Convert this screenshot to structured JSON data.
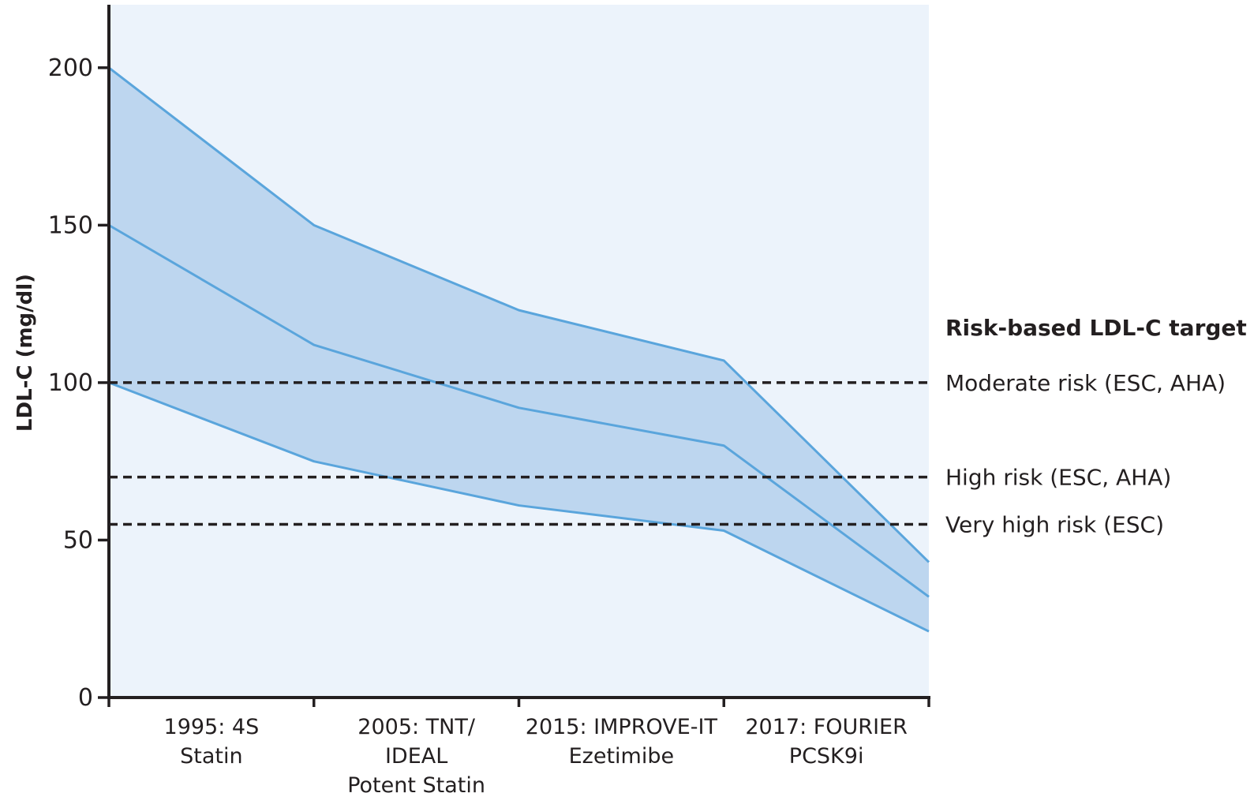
{
  "chart_data": {
    "type": "area",
    "title": "",
    "ylabel": "LDL-C (mg/dl)",
    "xlabel": "",
    "ylim": [
      0,
      220
    ],
    "yticks": [
      0,
      50,
      100,
      150,
      200
    ],
    "grid": false,
    "categories": [
      {
        "lines": [
          "1995: 4S",
          "Statin"
        ]
      },
      {
        "lines": [
          "2005: TNT/",
          "IDEAL",
          "Potent Statin"
        ]
      },
      {
        "lines": [
          "2015: IMPROVE-IT",
          "Ezetimibe"
        ]
      },
      {
        "lines": [
          "2017: FOURIER",
          "PCSK9i"
        ]
      }
    ],
    "x": [
      0,
      1,
      2,
      3,
      4
    ],
    "series": [
      {
        "values": [
          200,
          150,
          123,
          107,
          43
        ]
      },
      {
        "values": [
          150,
          112,
          92,
          80,
          32
        ]
      },
      {
        "values": [
          100,
          75,
          61,
          53,
          21
        ]
      }
    ],
    "band": {
      "upper_series": 0,
      "lower_series": 2
    },
    "reference_lines": [
      {
        "value": 100,
        "label": "Moderate risk (ESC, AHA)"
      },
      {
        "value": 70,
        "label": "High risk (ESC, AHA)"
      },
      {
        "value": 55,
        "label": "Very high risk (ESC)"
      }
    ],
    "legend_title": "Risk-based LDL-C target",
    "colors": {
      "plot_background": "#ecf3fb",
      "band_fill": "#bdd6ef",
      "line": "#5aa5dc",
      "axis": "#231f20",
      "reference": "#231f20"
    }
  }
}
